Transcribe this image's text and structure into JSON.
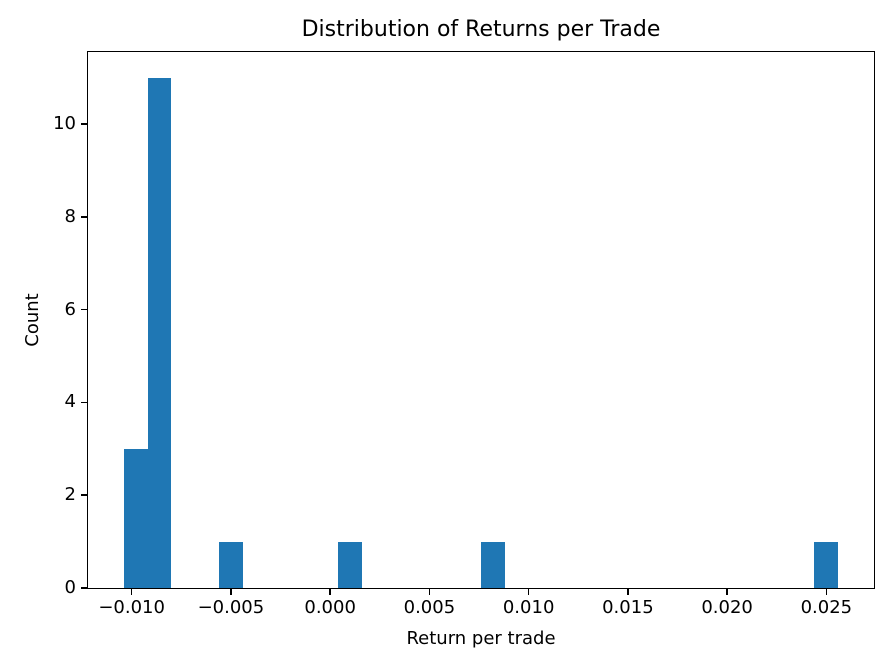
{
  "figure": {
    "background": "#ffffff"
  },
  "chart_data": {
    "type": "bar",
    "subtype": "histogram",
    "title": "Distribution of Returns per Trade",
    "xlabel": "Return per trade",
    "ylabel": "Count",
    "bar_color": "#1f77b4",
    "axis_color": "#000000",
    "grid": false,
    "legend_position": "none",
    "xlim": [
      -0.0122,
      0.0274
    ],
    "ylim": [
      0,
      11.55
    ],
    "bin_edges": [
      -0.0104,
      -0.0092,
      -0.008,
      -0.0068,
      -0.0056,
      -0.0044,
      -0.0032,
      -0.002,
      -0.0008,
      0.0004,
      0.0016,
      0.0028,
      0.004,
      0.0052,
      0.0064,
      0.0076,
      0.0088,
      0.01,
      0.0112,
      0.0124,
      0.0136,
      0.0148,
      0.016,
      0.0172,
      0.0184,
      0.0196,
      0.0208,
      0.022,
      0.0232,
      0.0244,
      0.0256
    ],
    "counts": [
      3,
      11,
      0,
      0,
      1,
      0,
      0,
      0,
      0,
      1,
      0,
      0,
      0,
      0,
      0,
      1,
      0,
      0,
      0,
      0,
      0,
      0,
      0,
      0,
      0,
      0,
      0,
      0,
      0,
      1
    ],
    "xticks": [
      {
        "value": -0.01,
        "label": "−0.010"
      },
      {
        "value": -0.005,
        "label": "−0.005"
      },
      {
        "value": 0.0,
        "label": "0.000"
      },
      {
        "value": 0.005,
        "label": "0.005"
      },
      {
        "value": 0.01,
        "label": "0.010"
      },
      {
        "value": 0.015,
        "label": "0.015"
      },
      {
        "value": 0.02,
        "label": "0.020"
      },
      {
        "value": 0.025,
        "label": "0.025"
      }
    ],
    "yticks": [
      {
        "value": 0,
        "label": "0"
      },
      {
        "value": 2,
        "label": "2"
      },
      {
        "value": 4,
        "label": "4"
      },
      {
        "value": 6,
        "label": "6"
      },
      {
        "value": 8,
        "label": "8"
      },
      {
        "value": 10,
        "label": "10"
      }
    ]
  }
}
